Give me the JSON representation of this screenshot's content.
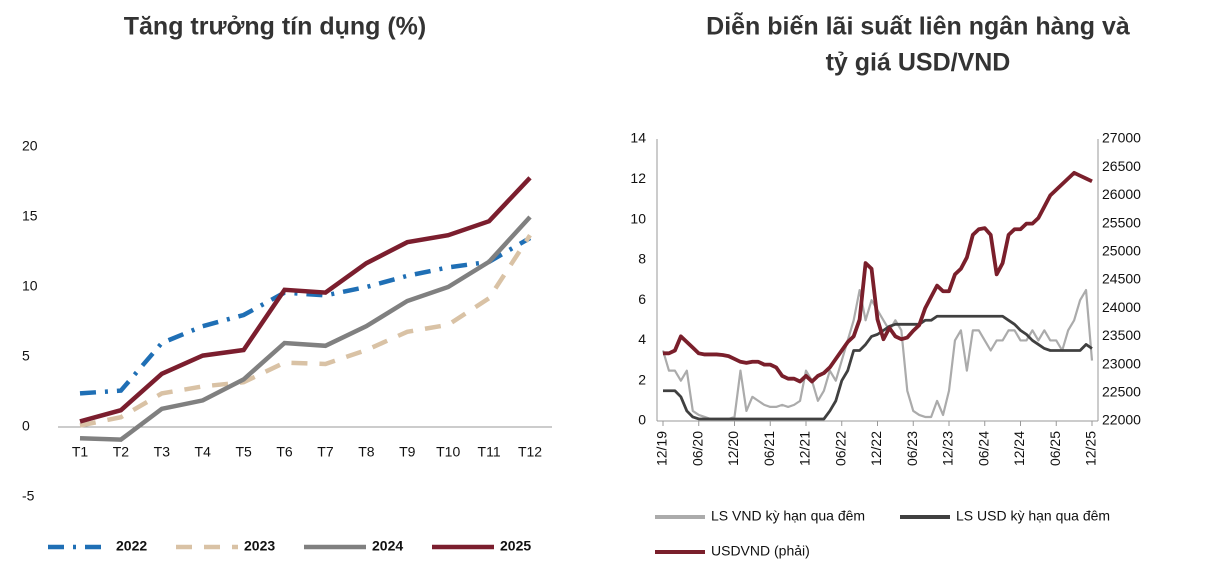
{
  "chart_data": [
    {
      "type": "line",
      "title": "Tăng trưởng tín dụng (%)",
      "categories": [
        "T1",
        "T2",
        "T3",
        "T4",
        "T5",
        "T6",
        "T7",
        "T8",
        "T9",
        "T10",
        "T11",
        "T12"
      ],
      "ylim": [
        -5,
        20
      ],
      "yticks": [
        -5,
        0,
        5,
        10,
        15,
        20
      ],
      "legend": "bottom",
      "series": [
        {
          "name": "2022",
          "color": "#1f6fb5",
          "style": "dashdot",
          "values": [
            2.4,
            2.6,
            6.0,
            7.2,
            8.0,
            9.6,
            9.4,
            10.0,
            10.8,
            11.4,
            11.8,
            13.5
          ]
        },
        {
          "name": "2023",
          "color": "#d9c2a5",
          "style": "dash",
          "values": [
            0.1,
            0.7,
            2.4,
            2.9,
            3.2,
            4.6,
            4.5,
            5.5,
            6.8,
            7.3,
            9.2,
            13.7
          ]
        },
        {
          "name": "2024",
          "color": "#808080",
          "style": "solid",
          "values": [
            -0.8,
            -0.9,
            1.3,
            1.9,
            3.4,
            6.0,
            5.8,
            7.2,
            9.0,
            10.0,
            11.8,
            15.0
          ]
        },
        {
          "name": "2025",
          "color": "#7b1e2e",
          "style": "solid",
          "values": [
            0.4,
            1.2,
            3.8,
            5.1,
            5.5,
            9.8,
            9.6,
            11.7,
            13.2,
            13.7,
            14.7,
            17.8
          ]
        }
      ]
    },
    {
      "type": "line",
      "title": [
        "Diễn biến lãi suất liên ngân hàng và",
        "tỷ giá USD/VND"
      ],
      "categories": [
        "12/19",
        null,
        null,
        null,
        null,
        null,
        "06/20",
        null,
        null,
        null,
        null,
        null,
        "12/20",
        null,
        null,
        null,
        null,
        null,
        "06/21",
        null,
        null,
        null,
        null,
        null,
        "12/21",
        null,
        null,
        null,
        null,
        null,
        "06/22",
        null,
        null,
        null,
        null,
        null,
        "12/22",
        null,
        null,
        null,
        null,
        null,
        "06/23",
        null,
        null,
        null,
        null,
        null,
        "12/23",
        null,
        null,
        null,
        null,
        null,
        "06/24",
        null,
        null,
        null,
        null,
        null,
        "12/24",
        null,
        null,
        null,
        null,
        null,
        "06/25",
        null,
        null,
        null,
        null,
        null,
        "12/25"
      ],
      "ylim": [
        0,
        14
      ],
      "yticks": [
        0,
        2,
        4,
        6,
        8,
        10,
        12,
        14
      ],
      "y2lim": [
        22000,
        27000
      ],
      "y2ticks": [
        22000,
        22500,
        23000,
        23500,
        24000,
        24500,
        25000,
        25500,
        26000,
        26500,
        27000
      ],
      "legend": "bottom",
      "series": [
        {
          "name": "LS VND kỳ hạn qua đêm",
          "color": "#ababab",
          "values": [
            3.5,
            2.5,
            2.5,
            2.0,
            2.5,
            0.5,
            0.3,
            0.2,
            0.1,
            0.1,
            0.1,
            0.1,
            0.2,
            2.5,
            0.5,
            1.2,
            1.0,
            0.8,
            0.7,
            0.7,
            0.8,
            0.7,
            0.8,
            1.0,
            2.5,
            2.0,
            1.0,
            1.5,
            2.5,
            2.0,
            3.0,
            4.0,
            5.0,
            6.5,
            5.0,
            6.0,
            5.5,
            5.0,
            4.5,
            5.0,
            4.5,
            1.5,
            0.5,
            0.3,
            0.2,
            0.2,
            1.0,
            0.3,
            1.5,
            4.0,
            4.5,
            2.5,
            4.5,
            4.5,
            4.0,
            3.5,
            4.0,
            4.0,
            4.5,
            4.5,
            4.0,
            4.0,
            4.5,
            4.0,
            4.5,
            4.0,
            4.0,
            3.5,
            4.5,
            5.0,
            6.0,
            6.5,
            3.0
          ]
        },
        {
          "name": "LS USD kỳ hạn qua đêm",
          "color": "#404040",
          "values": [
            1.5,
            1.5,
            1.5,
            1.2,
            0.5,
            0.2,
            0.1,
            0.1,
            0.1,
            0.1,
            0.1,
            0.1,
            0.1,
            0.1,
            0.1,
            0.1,
            0.1,
            0.1,
            0.1,
            0.1,
            0.1,
            0.1,
            0.1,
            0.1,
            0.1,
            0.1,
            0.1,
            0.1,
            0.5,
            1.0,
            2.0,
            2.5,
            3.5,
            3.5,
            3.8,
            4.2,
            4.3,
            4.5,
            4.7,
            4.8,
            4.8,
            4.8,
            4.8,
            4.8,
            5.0,
            5.0,
            5.2,
            5.2,
            5.2,
            5.2,
            5.2,
            5.2,
            5.2,
            5.2,
            5.2,
            5.2,
            5.2,
            5.2,
            5.0,
            4.8,
            4.5,
            4.3,
            4.0,
            3.8,
            3.6,
            3.5,
            3.5,
            3.5,
            3.5,
            3.5,
            3.5,
            3.8,
            3.6
          ]
        },
        {
          "name": "USDVND (phải)",
          "color": "#7a1f2b",
          "axis": "y2",
          "values": [
            23200,
            23200,
            23250,
            23500,
            23400,
            23300,
            23200,
            23180,
            23180,
            23180,
            23170,
            23150,
            23100,
            23050,
            23030,
            23050,
            23050,
            23000,
            23000,
            22950,
            22800,
            22750,
            22750,
            22700,
            22800,
            22700,
            22800,
            22850,
            22950,
            23100,
            23250,
            23400,
            23500,
            23800,
            24800,
            24700,
            23800,
            23450,
            23650,
            23500,
            23450,
            23480,
            23600,
            23700,
            24000,
            24200,
            24400,
            24300,
            24300,
            24600,
            24700,
            24900,
            25300,
            25400,
            25420,
            25300,
            24600,
            24800,
            25300,
            25400,
            25400,
            25500,
            25500,
            25600,
            25800,
            26000,
            26100,
            26200,
            26300,
            26400,
            26350,
            26300,
            26250
          ]
        }
      ]
    }
  ]
}
